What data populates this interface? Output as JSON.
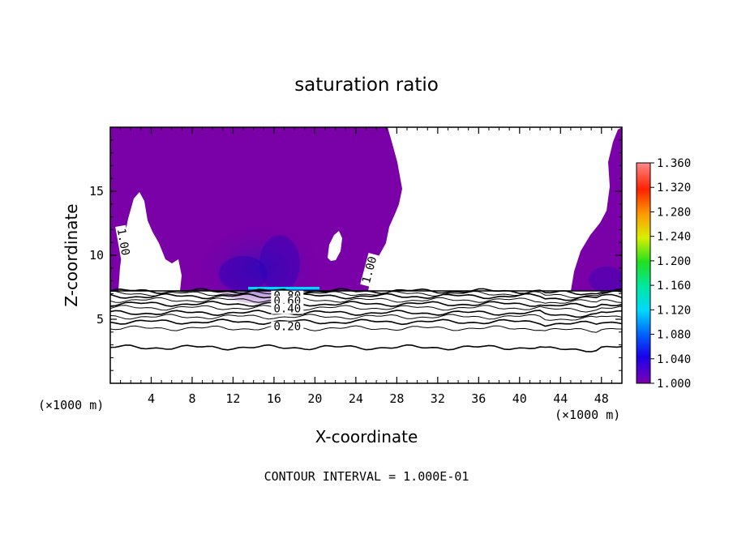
{
  "chart_data": {
    "type": "heatmap",
    "title": "saturation ratio",
    "xlabel": "X-coordinate",
    "ylabel": "Z-coordinate",
    "x_unit_left": "(×1000 m)",
    "x_unit_right": "(×1000 m)",
    "footnote": "CONTOUR INTERVAL = 1.000E-01",
    "xlim": [
      0,
      50
    ],
    "ylim": [
      0,
      20
    ],
    "x_ticks": [
      4,
      8,
      12,
      16,
      20,
      24,
      28,
      32,
      36,
      40,
      44,
      48
    ],
    "x_tick_labels": [
      "4",
      "8",
      "12",
      "16",
      "20",
      "24",
      "28",
      "32",
      "36",
      "40",
      "44",
      "48"
    ],
    "y_ticks": [
      5,
      10,
      15
    ],
    "y_tick_labels": [
      "5",
      "10",
      "15"
    ],
    "colorbar": {
      "min": 1.0,
      "max": 1.36,
      "labels": [
        "1.360",
        "1.320",
        "1.280",
        "1.240",
        "1.200",
        "1.160",
        "1.120",
        "1.080",
        "1.040",
        "1.000"
      ]
    },
    "contour_labels": [
      {
        "text": "1.00",
        "x": 1.0,
        "y": 11.0,
        "rotate": 80
      },
      {
        "text": "1.00",
        "x": 25.6,
        "y": 8.8,
        "rotate": -75
      },
      {
        "text": "0.80",
        "x": 17.3,
        "y": 6.6,
        "rotate": 0
      },
      {
        "text": "0.60",
        "x": 17.3,
        "y": 6.2,
        "rotate": 0
      },
      {
        "text": "0.40",
        "x": 17.3,
        "y": 5.6,
        "rotate": 0
      },
      {
        "text": "0.20",
        "x": 17.3,
        "y": 4.2,
        "rotate": 0
      }
    ],
    "contour_levels_below_cloud": [
      7.2,
      7.0,
      6.8,
      6.5,
      6.2,
      5.9,
      5.5,
      5.2,
      4.8,
      4.3,
      2.8
    ],
    "supersaturated_region": {
      "z_min": 7.2,
      "z_max": 20,
      "value_min": 1.0
    },
    "core_maximum": {
      "x_range": [
        13.6,
        20.4
      ],
      "z": 7.3,
      "value": 1.12
    }
  }
}
